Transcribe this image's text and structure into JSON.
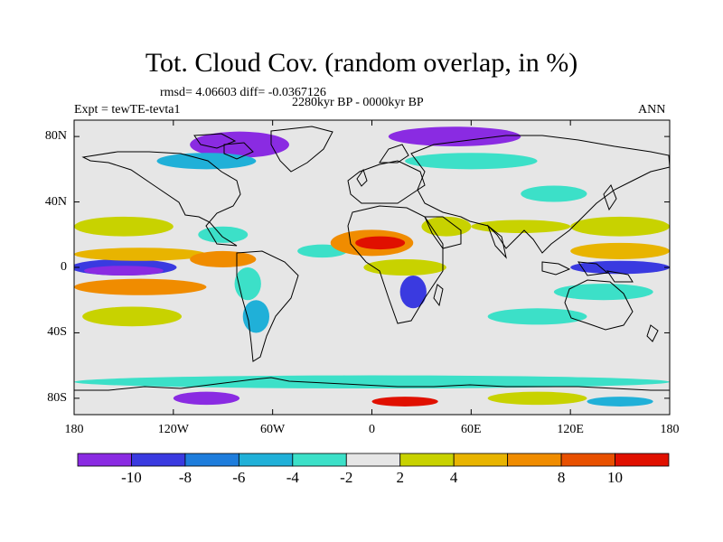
{
  "title": "Tot. Cloud Cov. (random overlap, in %)",
  "stats": "rmsd= 4.06603 diff= -0.0367126",
  "period": "2280kyr BP - 0000kyr BP",
  "experiment": "Expt = tewTE-tevta1",
  "season": "ANN",
  "map": {
    "lon_range": [
      -180,
      180
    ],
    "lat_range": [
      -90,
      90
    ],
    "lat_ticks": [
      {
        "value": 80,
        "label": "80N"
      },
      {
        "value": 40,
        "label": "40N"
      },
      {
        "value": 0,
        "label": "0"
      },
      {
        "value": -40,
        "label": "40S"
      },
      {
        "value": -80,
        "label": "80S"
      }
    ],
    "lon_ticks": [
      {
        "value": -180,
        "label": "180"
      },
      {
        "value": -120,
        "label": "120W"
      },
      {
        "value": -60,
        "label": "60W"
      },
      {
        "value": 0,
        "label": "0"
      },
      {
        "value": 60,
        "label": "60E"
      },
      {
        "value": 120,
        "label": "120E"
      },
      {
        "value": 180,
        "label": "180"
      }
    ],
    "background_color": "#e6e6e6"
  },
  "colorbar": {
    "colors": [
      "#8a2be2",
      "#3a3ae0",
      "#1e7ddc",
      "#20b0d8",
      "#3ce0c8",
      "#e6e6e6",
      "#c8d200",
      "#e8b400",
      "#f08c00",
      "#e85000",
      "#e01000"
    ],
    "labels": [
      "-10",
      "-8",
      "-6",
      "-4",
      "-2",
      "2",
      "4",
      "8",
      "10"
    ]
  },
  "anomalies": [
    {
      "lon": -150,
      "lat": 0,
      "rx": 32,
      "ry": 5,
      "level": 1
    },
    {
      "lon": -150,
      "lat": -2,
      "rx": 24,
      "ry": 3,
      "level": 0
    },
    {
      "lon": -140,
      "lat": 8,
      "rx": 40,
      "ry": 4,
      "level": 7
    },
    {
      "lon": -140,
      "lat": -12,
      "rx": 40,
      "ry": 5,
      "level": 8
    },
    {
      "lon": -150,
      "lat": 25,
      "rx": 30,
      "ry": 6,
      "level": 6
    },
    {
      "lon": -145,
      "lat": -30,
      "rx": 30,
      "ry": 6,
      "level": 6
    },
    {
      "lon": -90,
      "lat": 20,
      "rx": 15,
      "ry": 5,
      "level": 4
    },
    {
      "lon": -90,
      "lat": 5,
      "rx": 20,
      "ry": 5,
      "level": 8
    },
    {
      "lon": -75,
      "lat": -10,
      "rx": 8,
      "ry": 10,
      "level": 4
    },
    {
      "lon": -70,
      "lat": -30,
      "rx": 8,
      "ry": 10,
      "level": 3
    },
    {
      "lon": -30,
      "lat": 10,
      "rx": 15,
      "ry": 4,
      "level": 4
    },
    {
      "lon": 0,
      "lat": 15,
      "rx": 25,
      "ry": 8,
      "level": 8
    },
    {
      "lon": 5,
      "lat": 15,
      "rx": 15,
      "ry": 4,
      "level": 10
    },
    {
      "lon": 25,
      "lat": -15,
      "rx": 8,
      "ry": 10,
      "level": 1
    },
    {
      "lon": 20,
      "lat": 0,
      "rx": 25,
      "ry": 5,
      "level": 6
    },
    {
      "lon": 45,
      "lat": 25,
      "rx": 15,
      "ry": 6,
      "level": 6
    },
    {
      "lon": 90,
      "lat": 25,
      "rx": 30,
      "ry": 4,
      "level": 6
    },
    {
      "lon": 150,
      "lat": 0,
      "rx": 30,
      "ry": 4,
      "level": 1
    },
    {
      "lon": 150,
      "lat": 10,
      "rx": 30,
      "ry": 5,
      "level": 7
    },
    {
      "lon": 150,
      "lat": 25,
      "rx": 30,
      "ry": 6,
      "level": 6
    },
    {
      "lon": 140,
      "lat": -15,
      "rx": 30,
      "ry": 5,
      "level": 4
    },
    {
      "lon": 100,
      "lat": -30,
      "rx": 30,
      "ry": 5,
      "level": 4
    },
    {
      "lon": -80,
      "lat": 75,
      "rx": 30,
      "ry": 8,
      "level": 0
    },
    {
      "lon": -100,
      "lat": 65,
      "rx": 30,
      "ry": 5,
      "level": 3
    },
    {
      "lon": 50,
      "lat": 80,
      "rx": 40,
      "ry": 6,
      "level": 0
    },
    {
      "lon": 60,
      "lat": 65,
      "rx": 40,
      "ry": 5,
      "level": 4
    },
    {
      "lon": 110,
      "lat": 45,
      "rx": 20,
      "ry": 5,
      "level": 4
    },
    {
      "lon": 0,
      "lat": -70,
      "rx": 180,
      "ry": 4,
      "level": 4
    },
    {
      "lon": -100,
      "lat": -80,
      "rx": 20,
      "ry": 4,
      "level": 0
    },
    {
      "lon": 20,
      "lat": -82,
      "rx": 20,
      "ry": 3,
      "level": 10
    },
    {
      "lon": 100,
      "lat": -80,
      "rx": 30,
      "ry": 4,
      "level": 6
    },
    {
      "lon": 150,
      "lat": -82,
      "rx": 20,
      "ry": 3,
      "level": 3
    }
  ]
}
